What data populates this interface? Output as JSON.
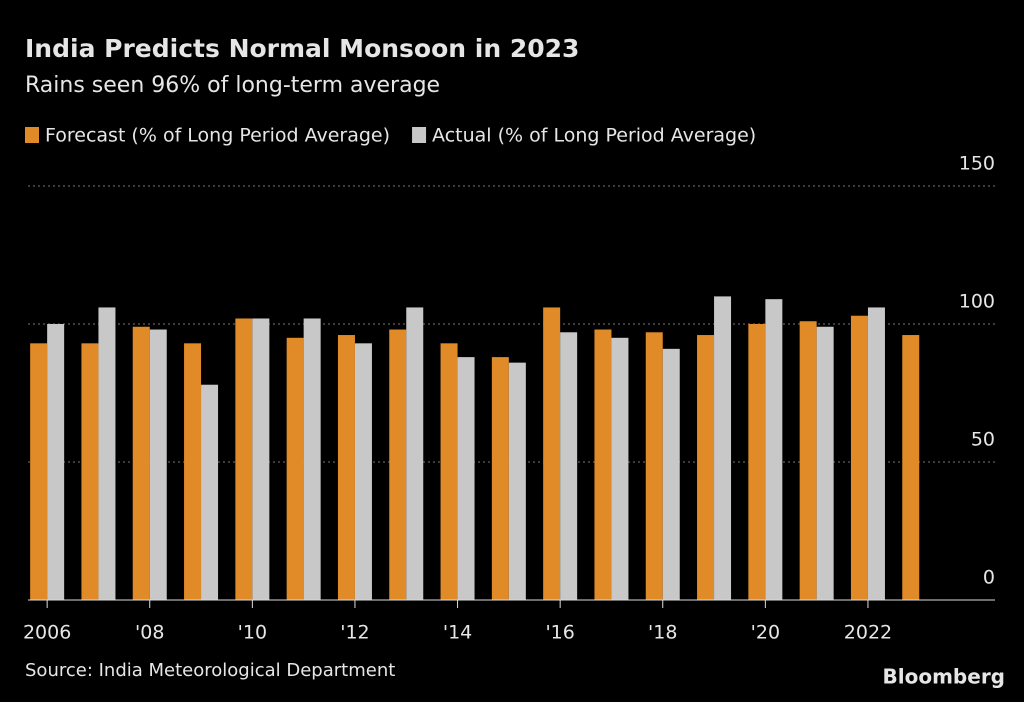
{
  "chart_data": {
    "type": "bar",
    "title": "India Predicts Normal Monsoon in 2023",
    "subtitle": "Rains seen 96% of long-term average",
    "source": "Source: India Meteorological Department",
    "brand": "Bloomberg",
    "categories": [
      "2006",
      null,
      "'08",
      null,
      "'10",
      null,
      "'12",
      null,
      "'14",
      null,
      "'16",
      null,
      "'18",
      null,
      "'20",
      null,
      "2022",
      null
    ],
    "series": [
      {
        "name": "Forecast (% of Long Period Average)",
        "color": "#e08a28",
        "values": [
          93,
          93,
          99,
          93,
          102,
          95,
          96,
          98,
          93,
          88,
          106,
          98,
          97,
          96,
          100,
          101,
          103,
          96
        ]
      },
      {
        "name": "Actual (% of Long Period Average)",
        "color": "#c8c8c8",
        "values": [
          100,
          106,
          98,
          78,
          102,
          102,
          93,
          106,
          88,
          86,
          97,
          95,
          91,
          110,
          109,
          99,
          106,
          null
        ]
      }
    ],
    "ylim": [
      0,
      150
    ],
    "yticks": [
      0,
      50,
      100,
      150
    ],
    "grid": true
  }
}
